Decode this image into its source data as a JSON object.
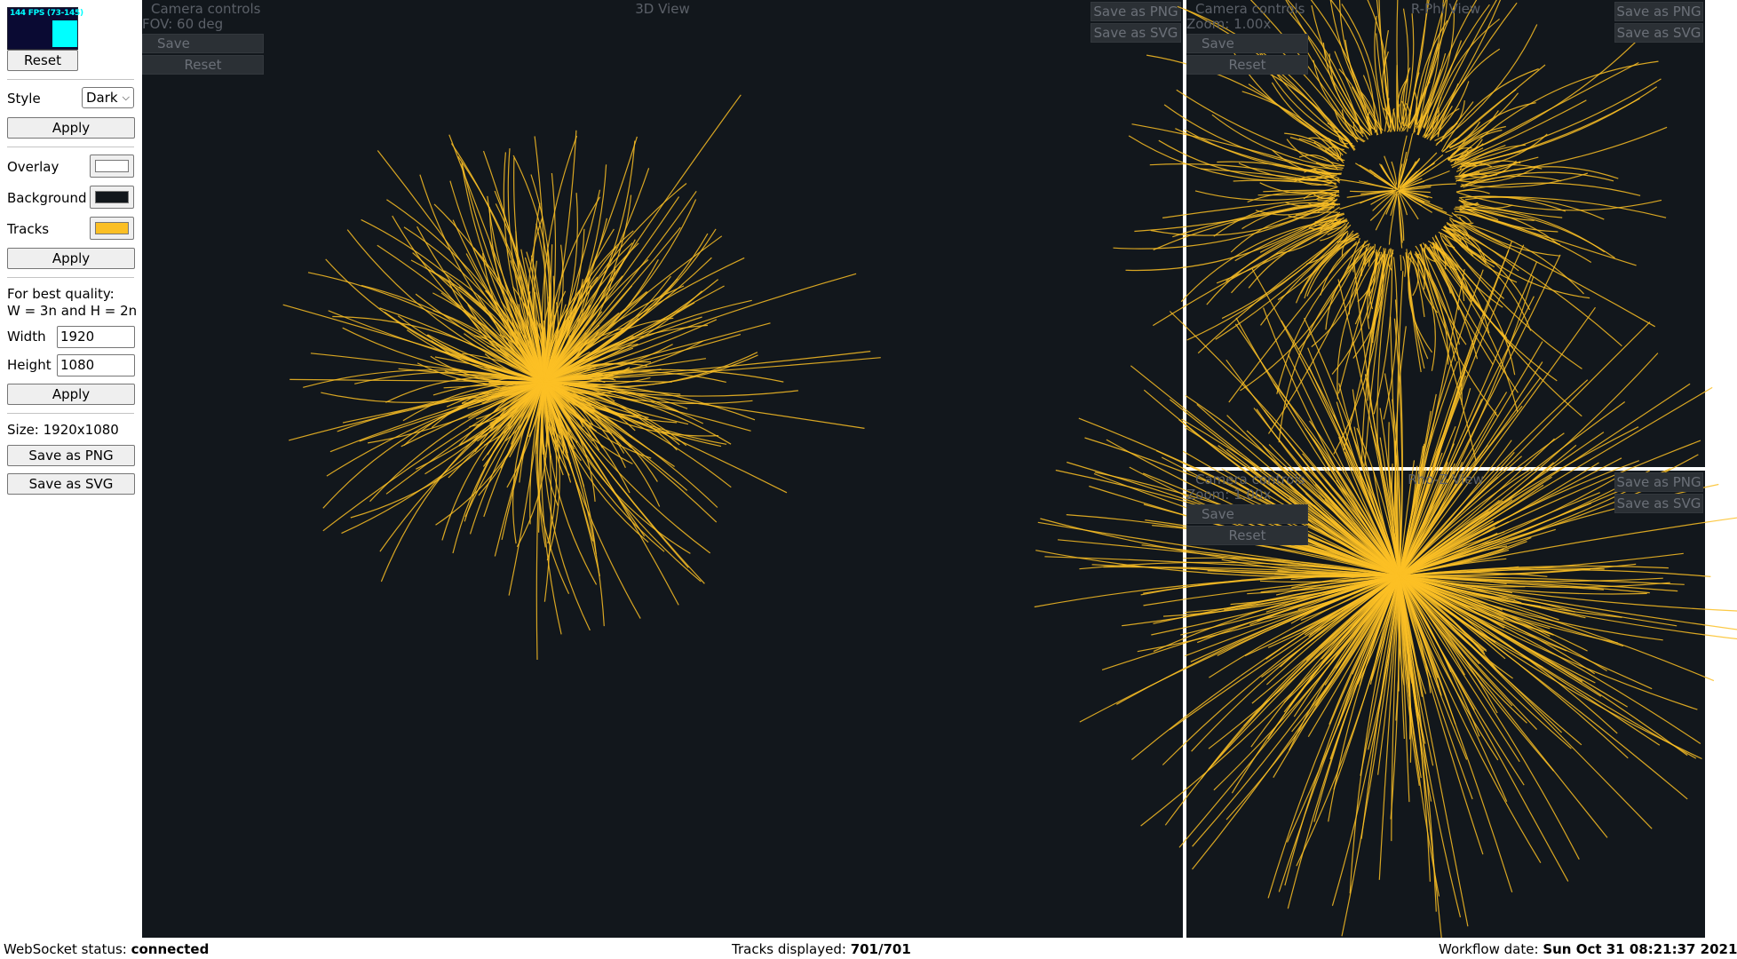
{
  "fps": {
    "label": "144 FPS (73-145)"
  },
  "sidebar": {
    "reset_label": "Reset",
    "style_label": "Style",
    "style_value": "Dark",
    "apply_style_label": "Apply",
    "overlay_label": "Overlay",
    "overlay_color": "#ffffff",
    "background_label": "Background",
    "background_color": "#11161b",
    "tracks_label": "Tracks",
    "tracks_color": "#fbbf24",
    "apply_colors_label": "Apply",
    "quality_note_1": "For best quality:",
    "quality_note_2": "W = 3n and H = 2n",
    "width_label": "Width",
    "width_value": "1920",
    "height_label": "Height",
    "height_value": "1080",
    "apply_size_label": "Apply",
    "size_text": "Size: 1920x1080",
    "save_png_label": "Save as PNG",
    "save_svg_label": "Save as SVG"
  },
  "views": {
    "main": {
      "title": "3D View",
      "camera_label": "Camera controls",
      "info": "FOV: 60 deg",
      "save_label": "Save",
      "reset_label": "Reset",
      "save_png_label": "Save as PNG",
      "save_svg_label": "Save as SVG"
    },
    "rphi": {
      "title": "R-Phi View",
      "camera_label": "Camera controls",
      "info": "Zoom: 1.00x",
      "save_label": "Save",
      "reset_label": "Reset",
      "save_png_label": "Save as PNG",
      "save_svg_label": "Save as SVG"
    },
    "rhoz": {
      "title": "Rho-Z View",
      "camera_label": "Camera controls",
      "info": "Zoom: 1.00x",
      "save_label": "Save",
      "reset_label": "Reset",
      "save_png_label": "Save as PNG",
      "save_svg_label": "Save as SVG"
    }
  },
  "status": {
    "ws_label": "WebSocket status:",
    "ws_value": "connected",
    "tracks_label": "Tracks displayed:",
    "tracks_value": "701/701",
    "date_label": "Workflow date:",
    "date_value": "Sun Oct 31 08:21:37 2021"
  }
}
